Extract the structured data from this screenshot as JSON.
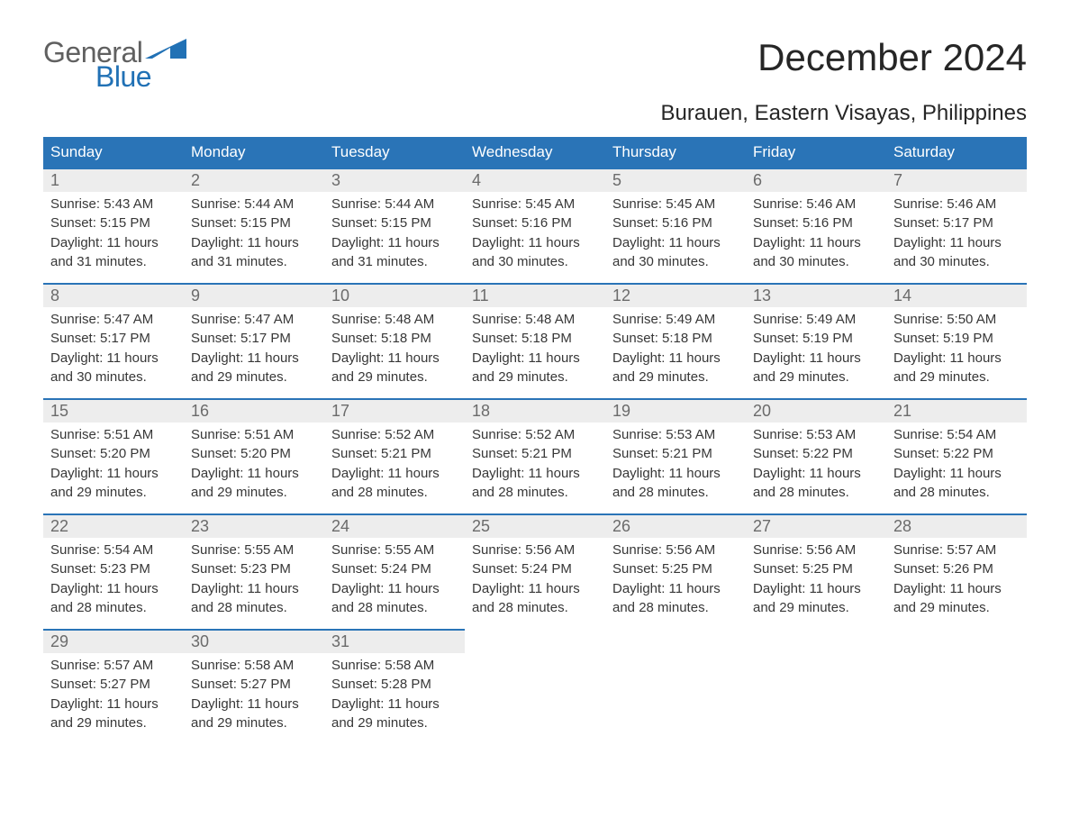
{
  "logo": {
    "word1": "General",
    "word2": "Blue"
  },
  "title": "December 2024",
  "subtitle": "Burauen, Eastern Visayas, Philippines",
  "colors": {
    "header_bg": "#2a74b7",
    "header_text": "#ffffff",
    "daynum_bg": "#ededed",
    "daynum_border": "#2a74b7",
    "logo_gray": "#606060",
    "logo_blue": "#2171b5",
    "body_text": "#373737"
  },
  "weekdays": [
    "Sunday",
    "Monday",
    "Tuesday",
    "Wednesday",
    "Thursday",
    "Friday",
    "Saturday"
  ],
  "weeks": [
    [
      {
        "day": "1",
        "sunrise": "Sunrise: 5:43 AM",
        "sunset": "Sunset: 5:15 PM",
        "dl1": "Daylight: 11 hours",
        "dl2": "and 31 minutes."
      },
      {
        "day": "2",
        "sunrise": "Sunrise: 5:44 AM",
        "sunset": "Sunset: 5:15 PM",
        "dl1": "Daylight: 11 hours",
        "dl2": "and 31 minutes."
      },
      {
        "day": "3",
        "sunrise": "Sunrise: 5:44 AM",
        "sunset": "Sunset: 5:15 PM",
        "dl1": "Daylight: 11 hours",
        "dl2": "and 31 minutes."
      },
      {
        "day": "4",
        "sunrise": "Sunrise: 5:45 AM",
        "sunset": "Sunset: 5:16 PM",
        "dl1": "Daylight: 11 hours",
        "dl2": "and 30 minutes."
      },
      {
        "day": "5",
        "sunrise": "Sunrise: 5:45 AM",
        "sunset": "Sunset: 5:16 PM",
        "dl1": "Daylight: 11 hours",
        "dl2": "and 30 minutes."
      },
      {
        "day": "6",
        "sunrise": "Sunrise: 5:46 AM",
        "sunset": "Sunset: 5:16 PM",
        "dl1": "Daylight: 11 hours",
        "dl2": "and 30 minutes."
      },
      {
        "day": "7",
        "sunrise": "Sunrise: 5:46 AM",
        "sunset": "Sunset: 5:17 PM",
        "dl1": "Daylight: 11 hours",
        "dl2": "and 30 minutes."
      }
    ],
    [
      {
        "day": "8",
        "sunrise": "Sunrise: 5:47 AM",
        "sunset": "Sunset: 5:17 PM",
        "dl1": "Daylight: 11 hours",
        "dl2": "and 30 minutes."
      },
      {
        "day": "9",
        "sunrise": "Sunrise: 5:47 AM",
        "sunset": "Sunset: 5:17 PM",
        "dl1": "Daylight: 11 hours",
        "dl2": "and 29 minutes."
      },
      {
        "day": "10",
        "sunrise": "Sunrise: 5:48 AM",
        "sunset": "Sunset: 5:18 PM",
        "dl1": "Daylight: 11 hours",
        "dl2": "and 29 minutes."
      },
      {
        "day": "11",
        "sunrise": "Sunrise: 5:48 AM",
        "sunset": "Sunset: 5:18 PM",
        "dl1": "Daylight: 11 hours",
        "dl2": "and 29 minutes."
      },
      {
        "day": "12",
        "sunrise": "Sunrise: 5:49 AM",
        "sunset": "Sunset: 5:18 PM",
        "dl1": "Daylight: 11 hours",
        "dl2": "and 29 minutes."
      },
      {
        "day": "13",
        "sunrise": "Sunrise: 5:49 AM",
        "sunset": "Sunset: 5:19 PM",
        "dl1": "Daylight: 11 hours",
        "dl2": "and 29 minutes."
      },
      {
        "day": "14",
        "sunrise": "Sunrise: 5:50 AM",
        "sunset": "Sunset: 5:19 PM",
        "dl1": "Daylight: 11 hours",
        "dl2": "and 29 minutes."
      }
    ],
    [
      {
        "day": "15",
        "sunrise": "Sunrise: 5:51 AM",
        "sunset": "Sunset: 5:20 PM",
        "dl1": "Daylight: 11 hours",
        "dl2": "and 29 minutes."
      },
      {
        "day": "16",
        "sunrise": "Sunrise: 5:51 AM",
        "sunset": "Sunset: 5:20 PM",
        "dl1": "Daylight: 11 hours",
        "dl2": "and 29 minutes."
      },
      {
        "day": "17",
        "sunrise": "Sunrise: 5:52 AM",
        "sunset": "Sunset: 5:21 PM",
        "dl1": "Daylight: 11 hours",
        "dl2": "and 28 minutes."
      },
      {
        "day": "18",
        "sunrise": "Sunrise: 5:52 AM",
        "sunset": "Sunset: 5:21 PM",
        "dl1": "Daylight: 11 hours",
        "dl2": "and 28 minutes."
      },
      {
        "day": "19",
        "sunrise": "Sunrise: 5:53 AM",
        "sunset": "Sunset: 5:21 PM",
        "dl1": "Daylight: 11 hours",
        "dl2": "and 28 minutes."
      },
      {
        "day": "20",
        "sunrise": "Sunrise: 5:53 AM",
        "sunset": "Sunset: 5:22 PM",
        "dl1": "Daylight: 11 hours",
        "dl2": "and 28 minutes."
      },
      {
        "day": "21",
        "sunrise": "Sunrise: 5:54 AM",
        "sunset": "Sunset: 5:22 PM",
        "dl1": "Daylight: 11 hours",
        "dl2": "and 28 minutes."
      }
    ],
    [
      {
        "day": "22",
        "sunrise": "Sunrise: 5:54 AM",
        "sunset": "Sunset: 5:23 PM",
        "dl1": "Daylight: 11 hours",
        "dl2": "and 28 minutes."
      },
      {
        "day": "23",
        "sunrise": "Sunrise: 5:55 AM",
        "sunset": "Sunset: 5:23 PM",
        "dl1": "Daylight: 11 hours",
        "dl2": "and 28 minutes."
      },
      {
        "day": "24",
        "sunrise": "Sunrise: 5:55 AM",
        "sunset": "Sunset: 5:24 PM",
        "dl1": "Daylight: 11 hours",
        "dl2": "and 28 minutes."
      },
      {
        "day": "25",
        "sunrise": "Sunrise: 5:56 AM",
        "sunset": "Sunset: 5:24 PM",
        "dl1": "Daylight: 11 hours",
        "dl2": "and 28 minutes."
      },
      {
        "day": "26",
        "sunrise": "Sunrise: 5:56 AM",
        "sunset": "Sunset: 5:25 PM",
        "dl1": "Daylight: 11 hours",
        "dl2": "and 28 minutes."
      },
      {
        "day": "27",
        "sunrise": "Sunrise: 5:56 AM",
        "sunset": "Sunset: 5:25 PM",
        "dl1": "Daylight: 11 hours",
        "dl2": "and 29 minutes."
      },
      {
        "day": "28",
        "sunrise": "Sunrise: 5:57 AM",
        "sunset": "Sunset: 5:26 PM",
        "dl1": "Daylight: 11 hours",
        "dl2": "and 29 minutes."
      }
    ],
    [
      {
        "day": "29",
        "sunrise": "Sunrise: 5:57 AM",
        "sunset": "Sunset: 5:27 PM",
        "dl1": "Daylight: 11 hours",
        "dl2": "and 29 minutes."
      },
      {
        "day": "30",
        "sunrise": "Sunrise: 5:58 AM",
        "sunset": "Sunset: 5:27 PM",
        "dl1": "Daylight: 11 hours",
        "dl2": "and 29 minutes."
      },
      {
        "day": "31",
        "sunrise": "Sunrise: 5:58 AM",
        "sunset": "Sunset: 5:28 PM",
        "dl1": "Daylight: 11 hours",
        "dl2": "and 29 minutes."
      },
      null,
      null,
      null,
      null
    ]
  ]
}
